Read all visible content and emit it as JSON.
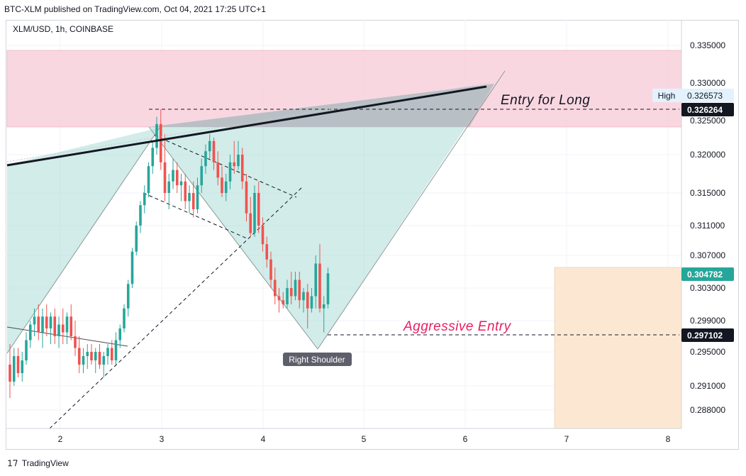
{
  "header": {
    "published": "BTC-XLM published on TradingView.com, Oct 04, 2021 17:25 UTC+1"
  },
  "footer": {
    "brand": "TradingView"
  },
  "chart_data": {
    "type": "candlestick",
    "symbol_label": "XLM/USD, 1h, COINBASE",
    "x_ticks": [
      "2",
      "3",
      "4",
      "5",
      "6",
      "7",
      "8"
    ],
    "y_ticks": [
      "0.335000",
      "0.330000",
      "0.325000",
      "0.320000",
      "0.315000",
      "0.311000",
      "0.307000",
      "0.303000",
      "0.299000",
      "0.295000",
      "0.291000",
      "0.288000"
    ],
    "price_labels": {
      "high_caption": "High",
      "high_value": "0.326573",
      "entry_long_price": "0.326264",
      "last_price": "0.304782",
      "aggressive_price": "0.297102"
    },
    "annotations": {
      "entry_long": "Entry for Long",
      "aggressive_entry": "Aggressive Entry",
      "right_shoulder": "Right Shoulder"
    },
    "colors": {
      "up": "#26a69a",
      "down": "#ef5350",
      "resistance_zone": "#f8d0dc",
      "pattern_fill": "#b2dfdb",
      "target_box": "#fce5cd",
      "trendline": "#131722",
      "aggressive_text": "#e91e63"
    },
    "candles": [
      {
        "o": 0.2935,
        "h": 0.296,
        "l": 0.2895,
        "c": 0.2915
      },
      {
        "o": 0.2915,
        "h": 0.2955,
        "l": 0.291,
        "c": 0.2945
      },
      {
        "o": 0.2945,
        "h": 0.2955,
        "l": 0.292,
        "c": 0.2925
      },
      {
        "o": 0.2925,
        "h": 0.295,
        "l": 0.2915,
        "c": 0.294
      },
      {
        "o": 0.294,
        "h": 0.2975,
        "l": 0.2935,
        "c": 0.2965
      },
      {
        "o": 0.2965,
        "h": 0.299,
        "l": 0.2955,
        "c": 0.2985
      },
      {
        "o": 0.2985,
        "h": 0.3005,
        "l": 0.297,
        "c": 0.2995
      },
      {
        "o": 0.2995,
        "h": 0.301,
        "l": 0.2965,
        "c": 0.2975
      },
      {
        "o": 0.2975,
        "h": 0.3005,
        "l": 0.2955,
        "c": 0.2995
      },
      {
        "o": 0.2995,
        "h": 0.301,
        "l": 0.297,
        "c": 0.298
      },
      {
        "o": 0.298,
        "h": 0.3,
        "l": 0.296,
        "c": 0.2995
      },
      {
        "o": 0.2995,
        "h": 0.3005,
        "l": 0.296,
        "c": 0.297
      },
      {
        "o": 0.297,
        "h": 0.2995,
        "l": 0.2955,
        "c": 0.2985
      },
      {
        "o": 0.2985,
        "h": 0.3005,
        "l": 0.296,
        "c": 0.2975
      },
      {
        "o": 0.2975,
        "h": 0.3,
        "l": 0.296,
        "c": 0.2995
      },
      {
        "o": 0.2995,
        "h": 0.301,
        "l": 0.2965,
        "c": 0.297
      },
      {
        "o": 0.297,
        "h": 0.299,
        "l": 0.2945,
        "c": 0.2955
      },
      {
        "o": 0.2955,
        "h": 0.297,
        "l": 0.2925,
        "c": 0.2935
      },
      {
        "o": 0.2935,
        "h": 0.2955,
        "l": 0.2925,
        "c": 0.2945
      },
      {
        "o": 0.2945,
        "h": 0.296,
        "l": 0.293,
        "c": 0.295
      },
      {
        "o": 0.295,
        "h": 0.296,
        "l": 0.2935,
        "c": 0.294
      },
      {
        "o": 0.294,
        "h": 0.2955,
        "l": 0.2925,
        "c": 0.295
      },
      {
        "o": 0.295,
        "h": 0.296,
        "l": 0.293,
        "c": 0.2935
      },
      {
        "o": 0.2935,
        "h": 0.295,
        "l": 0.292,
        "c": 0.2945
      },
      {
        "o": 0.2945,
        "h": 0.296,
        "l": 0.2935,
        "c": 0.2955
      },
      {
        "o": 0.2955,
        "h": 0.2965,
        "l": 0.2935,
        "c": 0.294
      },
      {
        "o": 0.294,
        "h": 0.2975,
        "l": 0.2935,
        "c": 0.2965
      },
      {
        "o": 0.2965,
        "h": 0.2985,
        "l": 0.2955,
        "c": 0.298
      },
      {
        "o": 0.298,
        "h": 0.301,
        "l": 0.2975,
        "c": 0.3005
      },
      {
        "o": 0.3005,
        "h": 0.304,
        "l": 0.2995,
        "c": 0.3035
      },
      {
        "o": 0.3035,
        "h": 0.308,
        "l": 0.303,
        "c": 0.3075
      },
      {
        "o": 0.3075,
        "h": 0.3115,
        "l": 0.307,
        "c": 0.311
      },
      {
        "o": 0.311,
        "h": 0.314,
        "l": 0.31,
        "c": 0.3135
      },
      {
        "o": 0.3135,
        "h": 0.316,
        "l": 0.3125,
        "c": 0.315
      },
      {
        "o": 0.315,
        "h": 0.319,
        "l": 0.3145,
        "c": 0.3185
      },
      {
        "o": 0.3185,
        "h": 0.322,
        "l": 0.3175,
        "c": 0.321
      },
      {
        "o": 0.321,
        "h": 0.3255,
        "l": 0.32,
        "c": 0.3245
      },
      {
        "o": 0.3245,
        "h": 0.3265,
        "l": 0.318,
        "c": 0.319
      },
      {
        "o": 0.319,
        "h": 0.323,
        "l": 0.314,
        "c": 0.315
      },
      {
        "o": 0.315,
        "h": 0.3175,
        "l": 0.313,
        "c": 0.3165
      },
      {
        "o": 0.3165,
        "h": 0.3195,
        "l": 0.3155,
        "c": 0.318
      },
      {
        "o": 0.318,
        "h": 0.319,
        "l": 0.315,
        "c": 0.316
      },
      {
        "o": 0.316,
        "h": 0.3175,
        "l": 0.314,
        "c": 0.3165
      },
      {
        "o": 0.3165,
        "h": 0.3175,
        "l": 0.313,
        "c": 0.314
      },
      {
        "o": 0.314,
        "h": 0.316,
        "l": 0.3125,
        "c": 0.315
      },
      {
        "o": 0.315,
        "h": 0.3165,
        "l": 0.312,
        "c": 0.313
      },
      {
        "o": 0.313,
        "h": 0.317,
        "l": 0.3125,
        "c": 0.316
      },
      {
        "o": 0.316,
        "h": 0.3195,
        "l": 0.315,
        "c": 0.3185
      },
      {
        "o": 0.3185,
        "h": 0.3215,
        "l": 0.3175,
        "c": 0.3205
      },
      {
        "o": 0.3205,
        "h": 0.323,
        "l": 0.3195,
        "c": 0.322
      },
      {
        "o": 0.322,
        "h": 0.3225,
        "l": 0.318,
        "c": 0.319
      },
      {
        "o": 0.319,
        "h": 0.3205,
        "l": 0.316,
        "c": 0.317
      },
      {
        "o": 0.317,
        "h": 0.3185,
        "l": 0.3145,
        "c": 0.315
      },
      {
        "o": 0.315,
        "h": 0.3175,
        "l": 0.314,
        "c": 0.3165
      },
      {
        "o": 0.3165,
        "h": 0.32,
        "l": 0.3155,
        "c": 0.319
      },
      {
        "o": 0.319,
        "h": 0.322,
        "l": 0.3175,
        "c": 0.3185
      },
      {
        "o": 0.3185,
        "h": 0.322,
        "l": 0.318,
        "c": 0.32
      },
      {
        "o": 0.32,
        "h": 0.321,
        "l": 0.3155,
        "c": 0.3165
      },
      {
        "o": 0.3165,
        "h": 0.3175,
        "l": 0.3115,
        "c": 0.3125
      },
      {
        "o": 0.3125,
        "h": 0.3145,
        "l": 0.3095,
        "c": 0.31
      },
      {
        "o": 0.31,
        "h": 0.316,
        "l": 0.3095,
        "c": 0.315
      },
      {
        "o": 0.315,
        "h": 0.3165,
        "l": 0.31,
        "c": 0.311
      },
      {
        "o": 0.311,
        "h": 0.312,
        "l": 0.3075,
        "c": 0.3085
      },
      {
        "o": 0.3085,
        "h": 0.3095,
        "l": 0.3055,
        "c": 0.3065
      },
      {
        "o": 0.3065,
        "h": 0.3075,
        "l": 0.303,
        "c": 0.304
      },
      {
        "o": 0.304,
        "h": 0.3055,
        "l": 0.301,
        "c": 0.302
      },
      {
        "o": 0.302,
        "h": 0.303,
        "l": 0.3,
        "c": 0.3015
      },
      {
        "o": 0.3015,
        "h": 0.3025,
        "l": 0.3005,
        "c": 0.301
      },
      {
        "o": 0.301,
        "h": 0.304,
        "l": 0.3005,
        "c": 0.303
      },
      {
        "o": 0.303,
        "h": 0.305,
        "l": 0.301,
        "c": 0.302
      },
      {
        "o": 0.302,
        "h": 0.305,
        "l": 0.3015,
        "c": 0.304
      },
      {
        "o": 0.304,
        "h": 0.305,
        "l": 0.3005,
        "c": 0.3015
      },
      {
        "o": 0.3015,
        "h": 0.303,
        "l": 0.3,
        "c": 0.3025
      },
      {
        "o": 0.3025,
        "h": 0.3035,
        "l": 0.298,
        "c": 0.3005
      },
      {
        "o": 0.3005,
        "h": 0.303,
        "l": 0.3,
        "c": 0.302
      },
      {
        "o": 0.302,
        "h": 0.307,
        "l": 0.3005,
        "c": 0.306
      },
      {
        "o": 0.306,
        "h": 0.3085,
        "l": 0.3,
        "c": 0.3005
      },
      {
        "o": 0.3005,
        "h": 0.302,
        "l": 0.2975,
        "c": 0.301
      },
      {
        "o": 0.301,
        "h": 0.3055,
        "l": 0.3005,
        "c": 0.3048
      }
    ]
  }
}
